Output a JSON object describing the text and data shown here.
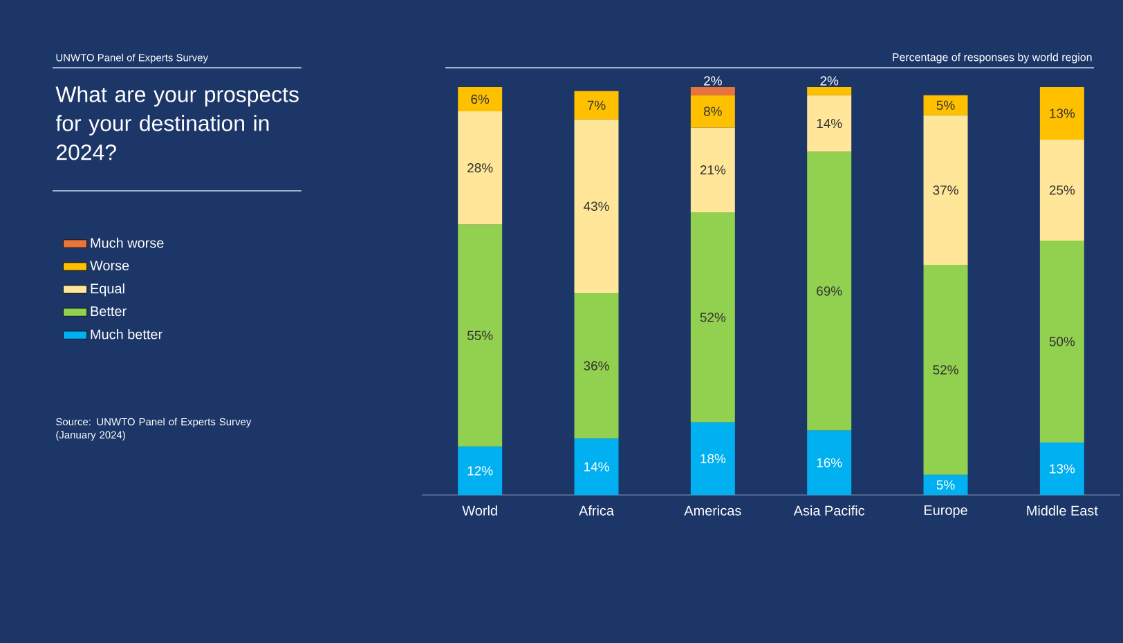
{
  "chart_data": {
    "type": "bar",
    "stacked": true,
    "title": "What are your prospects for your destination in 2024?",
    "subtitle": "Percentage of responses by world region",
    "annotations": [
      "UNWTO Panel of Experts Survey",
      "Source: UNWTO Panel of Experts Survey (January 2024)"
    ],
    "categories": [
      "World",
      "Africa",
      "Americas",
      "Asia Pacific",
      "Europe",
      "Middle East"
    ],
    "legend": "left",
    "series": [
      {
        "name": "Much better",
        "color": "#00b0f0",
        "values": [
          12,
          14,
          18,
          16,
          5,
          13
        ],
        "value_labels": [
          "12%",
          "14%",
          "18%",
          "16%",
          "5%",
          "13%"
        ]
      },
      {
        "name": "Better",
        "color": "#92d050",
        "values": [
          55,
          36,
          52,
          69,
          52,
          50
        ],
        "value_labels": [
          "55%",
          "36%",
          "52%",
          "69%",
          "52%",
          "50%"
        ]
      },
      {
        "name": "Equal",
        "color": "#ffe699",
        "values": [
          28,
          43,
          21,
          14,
          37,
          25
        ],
        "value_labels": [
          "28%",
          "43%",
          "21%",
          "14%",
          "37%",
          "25%"
        ]
      },
      {
        "name": "Worse",
        "color": "#ffc000",
        "values": [
          6,
          7,
          8,
          2,
          5,
          13
        ],
        "value_labels": [
          "6%",
          "7%",
          "8%",
          "2%",
          "5%",
          "13%"
        ]
      },
      {
        "name": "Much worse",
        "color": "#e8743b",
        "values": [
          null,
          null,
          2,
          null,
          null,
          null
        ],
        "value_labels": [
          null,
          null,
          "2%",
          null,
          null,
          null
        ]
      }
    ]
  }
}
